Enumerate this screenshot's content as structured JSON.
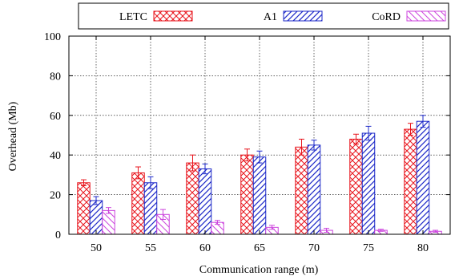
{
  "chart_data": {
    "type": "bar",
    "xlabel": "Communication range (m)",
    "ylabel": "Overhead (Mb)",
    "ylim": [
      0,
      100
    ],
    "yticks": [
      0,
      20,
      40,
      60,
      80,
      100
    ],
    "categories": [
      "50",
      "55",
      "60",
      "65",
      "70",
      "75",
      "80"
    ],
    "grid": true,
    "legend": "top",
    "series": [
      {
        "name": "LETC",
        "color": "#e8141c",
        "pattern": "crosshatch",
        "values": [
          26,
          31,
          36,
          40,
          44,
          48,
          53
        ],
        "errors": [
          1.5,
          3,
          4,
          3,
          4,
          2.5,
          3
        ]
      },
      {
        "name": "A1",
        "color": "#1c28c8",
        "pattern": "diagonal",
        "values": [
          17,
          26,
          33,
          39,
          45,
          51,
          57
        ],
        "errors": [
          2,
          3,
          2.5,
          3,
          2.5,
          3.5,
          3
        ]
      },
      {
        "name": "CoRD",
        "color": "#cc44dd",
        "pattern": "diagonal-light",
        "values": [
          12,
          10,
          6,
          3.5,
          2,
          2,
          1.5
        ],
        "errors": [
          1.5,
          2.5,
          1,
          1,
          1,
          0.5,
          0.5
        ]
      }
    ]
  }
}
